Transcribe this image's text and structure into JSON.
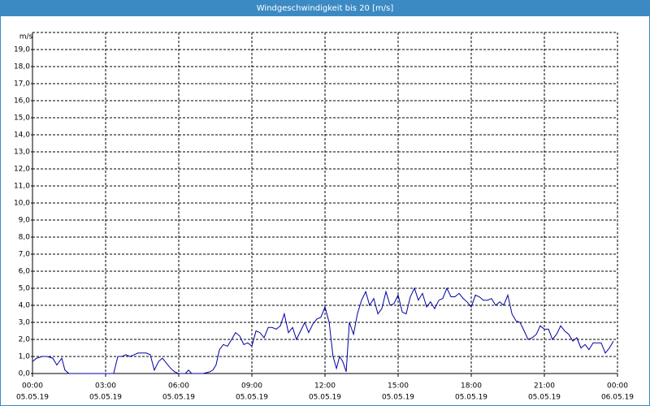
{
  "chart_data": {
    "type": "line",
    "title": "Windgeschwindigkeit bis 20 [m/s]",
    "y_unit": "m/s",
    "xlim": [
      0,
      24
    ],
    "xticks": [
      {
        "value": 0,
        "label": "00:00"
      },
      {
        "value": 3,
        "label": "03:00"
      },
      {
        "value": 6,
        "label": "06:00"
      },
      {
        "value": 9,
        "label": "09:00"
      },
      {
        "value": 12,
        "label": "12:00"
      },
      {
        "value": 15,
        "label": "15:00"
      },
      {
        "value": 18,
        "label": "18:00"
      },
      {
        "value": 21,
        "label": "21:00"
      },
      {
        "value": 24,
        "label": "00:00"
      }
    ],
    "xtick_dates": [
      "05.05.19",
      "05.05.19",
      "05.05.19",
      "05.05.19",
      "05.05.19",
      "05.05.19",
      "05.05.19",
      "05.05.19",
      "06.05.19"
    ],
    "ylim": [
      0,
      20
    ],
    "yticks": [
      {
        "value": 0,
        "label": "0,0"
      },
      {
        "value": 1,
        "label": "1,0"
      },
      {
        "value": 2,
        "label": "2,0"
      },
      {
        "value": 3,
        "label": "3,0"
      },
      {
        "value": 4,
        "label": "4,0"
      },
      {
        "value": 5,
        "label": "5,0"
      },
      {
        "value": 6,
        "label": "6,0"
      },
      {
        "value": 7,
        "label": "7,0"
      },
      {
        "value": 8,
        "label": "8,0"
      },
      {
        "value": 9,
        "label": "9,0"
      },
      {
        "value": 10,
        "label": "10,0"
      },
      {
        "value": 11,
        "label": "11,0"
      },
      {
        "value": 12,
        "label": "12,0"
      },
      {
        "value": 13,
        "label": "13,0"
      },
      {
        "value": 14,
        "label": "14,0"
      },
      {
        "value": 15,
        "label": "15,0"
      },
      {
        "value": 16,
        "label": "16,0"
      },
      {
        "value": 17,
        "label": "17,0"
      },
      {
        "value": 18,
        "label": "18,0"
      },
      {
        "value": 19,
        "label": "19,0"
      }
    ],
    "grid": true,
    "color": "#0000a0",
    "x": [
      0,
      0.17,
      0.4,
      0.6,
      0.83,
      1,
      1.2,
      1.33,
      1.5,
      3.33,
      3.5,
      3.67,
      3.83,
      4,
      4.17,
      4.33,
      4.67,
      4.83,
      5,
      5.17,
      5.33,
      5.5,
      5.67,
      5.83,
      6,
      6.27,
      6.4,
      6.53,
      7,
      7.27,
      7.4,
      7.53,
      7.67,
      7.83,
      8,
      8.17,
      8.33,
      8.5,
      8.67,
      8.83,
      9,
      9.17,
      9.33,
      9.5,
      9.67,
      9.83,
      10,
      10.17,
      10.33,
      10.5,
      10.67,
      10.83,
      11,
      11.17,
      11.33,
      11.5,
      11.67,
      11.83,
      12,
      12.17,
      12.33,
      12.47,
      12.6,
      12.73,
      12.87,
      13,
      13.17,
      13.33,
      13.5,
      13.67,
      13.83,
      14,
      14.17,
      14.33,
      14.5,
      14.67,
      14.83,
      15,
      15.17,
      15.33,
      15.5,
      15.67,
      15.83,
      16,
      16.17,
      16.33,
      16.5,
      16.67,
      16.83,
      17,
      17.17,
      17.33,
      17.5,
      17.67,
      17.83,
      18,
      18.17,
      18.33,
      18.5,
      18.67,
      18.83,
      19,
      19.17,
      19.33,
      19.5,
      19.67,
      19.83,
      20,
      20.17,
      20.33,
      20.5,
      20.67,
      20.83,
      21,
      21.17,
      21.33,
      21.5,
      21.67,
      21.83,
      22,
      22.17,
      22.33,
      22.5,
      22.67,
      22.83,
      23,
      23.17,
      23.33,
      23.5,
      23.67,
      23.83
    ],
    "values": [
      0.7,
      0.9,
      1.0,
      1.0,
      0.9,
      0.5,
      0.9,
      0.2,
      0,
      0,
      1.0,
      1.0,
      1.1,
      1.0,
      1.1,
      1.2,
      1.2,
      1.1,
      0.2,
      0.7,
      0.9,
      0.6,
      0.3,
      0.1,
      0,
      0,
      0.2,
      0,
      0,
      0.1,
      0.2,
      0.5,
      1.4,
      1.7,
      1.6,
      2.0,
      2.4,
      2.2,
      1.7,
      1.8,
      1.6,
      2.5,
      2.4,
      2.1,
      2.7,
      2.7,
      2.6,
      2.8,
      3.5,
      2.4,
      2.7,
      2.0,
      2.5,
      3.0,
      2.4,
      2.9,
      3.2,
      3.3,
      3.9,
      3.0,
      1.0,
      0.3,
      1.0,
      0.7,
      0.1,
      3.0,
      2.3,
      3.5,
      4.3,
      4.8,
      4.0,
      4.4,
      3.5,
      3.8,
      4.8,
      4.0,
      4.1,
      4.6,
      3.6,
      3.5,
      4.5,
      5.0,
      4.3,
      4.7,
      3.9,
      4.2,
      3.8,
      4.3,
      4.4,
      5.0,
      4.5,
      4.5,
      4.7,
      4.4,
      4.2,
      3.9,
      4.6,
      4.5,
      4.3,
      4.3,
      4.4,
      4.0,
      4.2,
      4.0,
      4.6,
      3.5,
      3.1,
      3.0,
      2.5,
      2.0,
      2.1,
      2.3,
      2.8,
      2.6,
      2.6,
      2.0,
      2.3,
      2.8,
      2.5,
      2.3,
      1.9,
      2.1,
      1.5,
      1.7,
      1.4,
      1.8,
      1.8,
      1.8,
      1.2,
      1.5,
      1.9
    ]
  }
}
